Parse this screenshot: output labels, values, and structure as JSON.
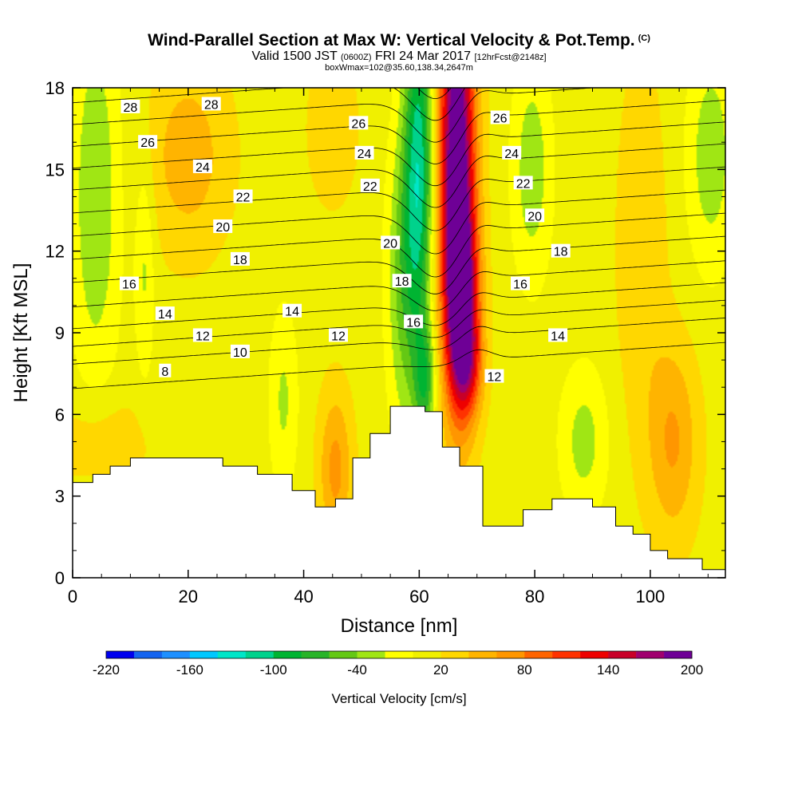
{
  "header": {
    "title": "Wind-Parallel Section at Max W: Vertical Velocity & Pot.Temp.",
    "copyright": "(C)",
    "valid_prefix": "Valid 1500 JST",
    "valid_utc": "(0600Z)",
    "valid_date": "FRI 24 Mar 2017",
    "forecast": "[12hrFcst@2148z]",
    "box_info": "boxWmax=102@35.60,138.34,2647m"
  },
  "chart_data": {
    "type": "heatmap",
    "xlabel": "Distance [nm]",
    "ylabel": "Height [Kft MSL]",
    "xlim": [
      0,
      113
    ],
    "ylim": [
      0,
      18
    ],
    "xticks": [
      0,
      20,
      40,
      60,
      80,
      100
    ],
    "yticks": [
      0,
      3,
      6,
      9,
      12,
      15,
      18
    ],
    "xtick_labels": [
      "0",
      "20",
      "40",
      "60",
      "80",
      "100"
    ],
    "ytick_labels": [
      "0",
      "3",
      "6",
      "9",
      "12",
      "15",
      "18"
    ],
    "colorbar": {
      "title": "Vertical Velocity [cm/s]",
      "levels": [
        -220,
        -200,
        -180,
        -160,
        -140,
        -120,
        -100,
        -80,
        -60,
        -40,
        -20,
        0,
        20,
        40,
        60,
        80,
        100,
        120,
        140,
        160,
        180,
        200
      ],
      "tick_values": [
        -220,
        -160,
        -100,
        -40,
        20,
        80,
        140,
        200
      ],
      "tick_labels": [
        "-220",
        "-160",
        "-100",
        "-40",
        "20",
        "80",
        "140",
        "200"
      ],
      "colors": [
        "#0000ee",
        "#1464f0",
        "#1e90ff",
        "#00c8ff",
        "#00e6c8",
        "#00d28c",
        "#00b432",
        "#28b428",
        "#64c814",
        "#a0e614",
        "#ffff00",
        "#f0f000",
        "#ffd700",
        "#ffb400",
        "#ff9600",
        "#ff6400",
        "#ff3200",
        "#ee0000",
        "#c80028",
        "#a0006e",
        "#6e0096"
      ]
    },
    "terrain": [
      [
        0,
        3.5
      ],
      [
        3.5,
        3.8
      ],
      [
        6.5,
        4.1
      ],
      [
        10,
        4.4
      ],
      [
        20,
        4.4
      ],
      [
        26,
        4.1
      ],
      [
        32,
        3.8
      ],
      [
        38,
        3.2
      ],
      [
        42,
        2.6
      ],
      [
        45.5,
        2.9
      ],
      [
        48.5,
        4.4
      ],
      [
        51.5,
        5.3
      ],
      [
        55,
        6.3
      ],
      [
        61,
        6.1
      ],
      [
        64,
        4.8
      ],
      [
        67,
        4.1
      ],
      [
        71,
        1.9
      ],
      [
        78,
        2.5
      ],
      [
        83,
        2.9
      ],
      [
        90,
        2.6
      ],
      [
        94,
        1.9
      ],
      [
        97,
        1.6
      ],
      [
        100,
        1.0
      ],
      [
        103,
        0.7
      ],
      [
        109,
        0.3
      ],
      [
        113,
        0.3
      ]
    ],
    "vv_features": [
      {
        "x": 66.5,
        "y": 15.5,
        "sx": 2.2,
        "sy": 5.5,
        "w": 205
      },
      {
        "x": 67.5,
        "y": 10.0,
        "sx": 2.0,
        "sy": 2.5,
        "w": 130
      },
      {
        "x": 68.5,
        "y": 7.8,
        "sx": 1.8,
        "sy": 1.3,
        "w": 60
      },
      {
        "x": 60.0,
        "y": 15.5,
        "sx": 1.8,
        "sy": 4.5,
        "w": -115
      },
      {
        "x": 57.5,
        "y": 11.0,
        "sx": 2.2,
        "sy": 4.0,
        "w": -60
      },
      {
        "x": 61.0,
        "y": 7.2,
        "sx": 1.3,
        "sy": 1.5,
        "w": -75
      },
      {
        "x": 4.0,
        "y": 14.0,
        "sx": 3.0,
        "sy": 5.0,
        "w": -50
      },
      {
        "x": 12.5,
        "y": 11.5,
        "sx": 1.2,
        "sy": 3.0,
        "w": -35
      },
      {
        "x": 36.5,
        "y": 6.5,
        "sx": 1.8,
        "sy": 2.5,
        "w": -35
      },
      {
        "x": 79.5,
        "y": 15.0,
        "sx": 2.5,
        "sy": 3.0,
        "w": -45
      },
      {
        "x": 88.5,
        "y": 5.0,
        "sx": 3.0,
        "sy": 2.0,
        "w": -40
      },
      {
        "x": 110.5,
        "y": 15.5,
        "sx": 3.0,
        "sy": 3.0,
        "w": -45
      },
      {
        "x": 20.0,
        "y": 15.5,
        "sx": 5.0,
        "sy": 2.5,
        "w": 40
      },
      {
        "x": 45.5,
        "y": 4.0,
        "sx": 2.0,
        "sy": 2.0,
        "w": 55
      },
      {
        "x": 45.0,
        "y": 16.5,
        "sx": 3.0,
        "sy": 2.0,
        "w": 25
      },
      {
        "x": 104.0,
        "y": 5.0,
        "sx": 3.0,
        "sy": 2.5,
        "w": 50
      },
      {
        "x": 98.5,
        "y": 12.0,
        "sx": 3.0,
        "sy": 5.0,
        "w": 25
      },
      {
        "x": 5.0,
        "y": 5.0,
        "sx": 6.0,
        "sy": 1.2,
        "w": 25
      }
    ],
    "theta_contours": [
      {
        "base": 7.4,
        "label": "8",
        "label_x": 16
      },
      {
        "base": 8.3,
        "label": "10",
        "label_x": 29
      },
      {
        "base": 8.95,
        "label": "12",
        "label_x": 23
      },
      {
        "base": 9.6,
        "label": "14",
        "label_x": 16
      },
      {
        "base": 10.4,
        "label": "16",
        "label_x": 10
      },
      {
        "base": 11.3,
        "label": "18",
        "label_x": 29
      },
      {
        "base": 12.15,
        "label": "20",
        "label_x": 26
      },
      {
        "base": 13.0,
        "label": "22",
        "label_x": 30
      },
      {
        "base": 13.85,
        "label": "24",
        "label_x": 22
      },
      {
        "base": 14.7,
        "label": "26",
        "label_x": 13
      },
      {
        "base": 15.5,
        "label": "28",
        "label_x": 10
      }
    ],
    "theta_labels": [
      {
        "text": "28",
        "x": 10,
        "y": 17.3
      },
      {
        "text": "28",
        "x": 24,
        "y": 17.4
      },
      {
        "text": "26",
        "x": 13,
        "y": 16.0
      },
      {
        "text": "24",
        "x": 22.5,
        "y": 15.1
      },
      {
        "text": "22",
        "x": 29.5,
        "y": 14.0
      },
      {
        "text": "20",
        "x": 26,
        "y": 12.9
      },
      {
        "text": "18",
        "x": 29,
        "y": 11.7
      },
      {
        "text": "16",
        "x": 9.8,
        "y": 10.8
      },
      {
        "text": "14",
        "x": 16,
        "y": 9.7
      },
      {
        "text": "12",
        "x": 22.5,
        "y": 8.9
      },
      {
        "text": "10",
        "x": 29,
        "y": 8.3
      },
      {
        "text": "8",
        "x": 16,
        "y": 7.6
      },
      {
        "text": "14",
        "x": 38,
        "y": 9.8
      },
      {
        "text": "12",
        "x": 46,
        "y": 8.9
      },
      {
        "text": "26",
        "x": 49.5,
        "y": 16.7
      },
      {
        "text": "24",
        "x": 50.5,
        "y": 15.6
      },
      {
        "text": "22",
        "x": 51.5,
        "y": 14.4
      },
      {
        "text": "20",
        "x": 55,
        "y": 12.3
      },
      {
        "text": "18",
        "x": 57,
        "y": 10.9
      },
      {
        "text": "16",
        "x": 59,
        "y": 9.4
      },
      {
        "text": "26",
        "x": 74,
        "y": 16.9
      },
      {
        "text": "24",
        "x": 76,
        "y": 15.6
      },
      {
        "text": "22",
        "x": 78,
        "y": 14.5
      },
      {
        "text": "20",
        "x": 80,
        "y": 13.3
      },
      {
        "text": "18",
        "x": 84.5,
        "y": 12.0
      },
      {
        "text": "16",
        "x": 77.5,
        "y": 10.8
      },
      {
        "text": "14",
        "x": 84,
        "y": 8.9
      },
      {
        "text": "12",
        "x": 73,
        "y": 7.4
      }
    ]
  }
}
